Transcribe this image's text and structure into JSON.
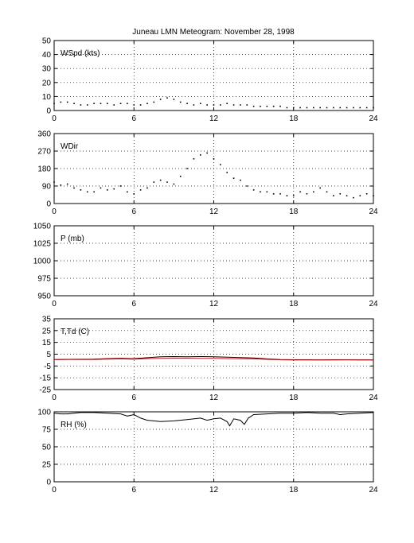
{
  "title": "Juneau LMN Meteogram:   November 28, 1998",
  "chart_data": [
    {
      "type": "scatter",
      "label": "WSpd (kts)",
      "xlim": [
        0,
        24
      ],
      "ylim": [
        0,
        50
      ],
      "xticks": [
        0,
        6,
        12,
        18,
        24
      ],
      "yticks": [
        0,
        10,
        20,
        30,
        40,
        50
      ],
      "grid": true,
      "series": [
        {
          "color": "#000000",
          "x": [
            0,
            0.5,
            1,
            1.5,
            2,
            2.5,
            3,
            3.5,
            4,
            4.5,
            5,
            5.5,
            6,
            6.5,
            7,
            7.5,
            8,
            8.5,
            9,
            9.5,
            10,
            10.5,
            11,
            11.5,
            12,
            12.5,
            13,
            13.5,
            14,
            14.5,
            15,
            15.5,
            16,
            16.5,
            17,
            17.5,
            18,
            18.5,
            19,
            19.5,
            20,
            20.5,
            21,
            21.5,
            22,
            22.5,
            23,
            23.5,
            24
          ],
          "y": [
            5,
            6,
            6,
            5,
            4,
            4,
            5,
            5,
            5,
            4,
            5,
            5,
            4,
            4,
            5,
            6,
            8,
            9,
            8,
            6,
            5,
            4,
            5,
            4,
            4,
            4,
            5,
            4,
            4,
            4,
            3,
            3,
            3,
            3,
            3,
            2,
            2,
            2,
            2,
            2,
            2,
            2,
            2,
            2,
            2,
            2,
            2,
            2,
            2
          ]
        }
      ]
    },
    {
      "type": "scatter",
      "label": "WDir",
      "xlim": [
        0,
        24
      ],
      "ylim": [
        0,
        360
      ],
      "xticks": [
        0,
        6,
        12,
        18,
        24
      ],
      "yticks": [
        0,
        90,
        180,
        270,
        360
      ],
      "grid": true,
      "series": [
        {
          "color": "#000000",
          "x": [
            0,
            0.5,
            1,
            1.5,
            2,
            2.5,
            3,
            3.5,
            4,
            4.5,
            5,
            5.5,
            6,
            6.5,
            7,
            7.5,
            8,
            8.5,
            9,
            9.5,
            10,
            10.5,
            11,
            11.5,
            12,
            12.5,
            13,
            13.5,
            14,
            14.5,
            15,
            15.5,
            16,
            16.5,
            17,
            17.5,
            18,
            18.5,
            19,
            19.5,
            20,
            20.5,
            21,
            21.5,
            22,
            22.5,
            23,
            23.5,
            24
          ],
          "y": [
            110,
            95,
            100,
            80,
            70,
            60,
            60,
            80,
            70,
            75,
            90,
            60,
            50,
            70,
            80,
            110,
            120,
            110,
            100,
            140,
            180,
            230,
            250,
            260,
            230,
            200,
            160,
            130,
            120,
            90,
            70,
            60,
            60,
            50,
            50,
            40,
            40,
            60,
            50,
            60,
            80,
            60,
            40,
            50,
            40,
            30,
            40,
            50,
            40
          ]
        }
      ]
    },
    {
      "type": "line",
      "label": "P (mb)",
      "xlim": [
        0,
        24
      ],
      "ylim": [
        950,
        1050
      ],
      "xticks": [
        0,
        6,
        12,
        18,
        24
      ],
      "yticks": [
        950,
        975,
        1000,
        1025,
        1050
      ],
      "grid": true,
      "series": []
    },
    {
      "type": "line",
      "label": "T,Td (C)",
      "xlim": [
        0,
        24
      ],
      "ylim": [
        -25,
        35
      ],
      "xticks": [
        0,
        6,
        12,
        18,
        24
      ],
      "yticks": [
        -25,
        -15,
        -5,
        5,
        15,
        25,
        35
      ],
      "grid": true,
      "series": [
        {
          "color": "#000000",
          "x": [
            0,
            1,
            2,
            3,
            4,
            5,
            5.8,
            6,
            7,
            8,
            9,
            10,
            11,
            12,
            13,
            14,
            15,
            16,
            17,
            18,
            19,
            20,
            21,
            22,
            23,
            24
          ],
          "y": [
            0.5,
            0.6,
            0.7,
            0.8,
            1.2,
            1.5,
            1.2,
            1.2,
            2,
            2.8,
            3,
            2.8,
            3,
            2.8,
            2.5,
            2.2,
            1.8,
            1,
            0.5,
            0.3,
            0.3,
            0.2,
            0.3,
            0.3,
            0.2,
            0.2
          ]
        },
        {
          "color": "#ff0000",
          "x": [
            0,
            1,
            2,
            3,
            4,
            5,
            5.8,
            6,
            7,
            8,
            9,
            10,
            11,
            12,
            13,
            14,
            15,
            16,
            17,
            18,
            19,
            20,
            21,
            22,
            23,
            24
          ],
          "y": [
            0.3,
            0.4,
            0.5,
            0.5,
            0.8,
            1,
            0.8,
            0.8,
            1.2,
            1.5,
            1.6,
            1.6,
            1.5,
            1.4,
            1.2,
            1.1,
            1,
            0.6,
            0.2,
            0,
            0,
            0,
            0,
            0.1,
            0,
            0
          ]
        }
      ]
    },
    {
      "type": "line",
      "label": "RH (%)",
      "xlim": [
        0,
        24
      ],
      "ylim": [
        0,
        100
      ],
      "xticks": [
        0,
        6,
        12,
        18,
        24
      ],
      "yticks": [
        0,
        25,
        50,
        75,
        100
      ],
      "grid": true,
      "series": [
        {
          "color": "#000000",
          "x": [
            0,
            0.5,
            1,
            1.5,
            2,
            3,
            4,
            5,
            5.5,
            6,
            6.5,
            7,
            7.5,
            8,
            9,
            10,
            11,
            11.5,
            12,
            12.5,
            13,
            13.2,
            13.5,
            14,
            14.3,
            14.6,
            15,
            16,
            17,
            18,
            19,
            20,
            21,
            21.5,
            22,
            23,
            24
          ],
          "y": [
            98,
            97,
            97,
            98,
            99,
            99,
            98,
            97,
            94,
            96,
            91,
            88,
            87,
            86,
            87,
            89,
            91,
            88,
            90,
            91,
            86,
            80,
            90,
            88,
            82,
            91,
            96,
            97,
            98,
            98,
            99,
            98,
            98,
            96,
            97,
            98,
            99
          ]
        }
      ]
    }
  ]
}
